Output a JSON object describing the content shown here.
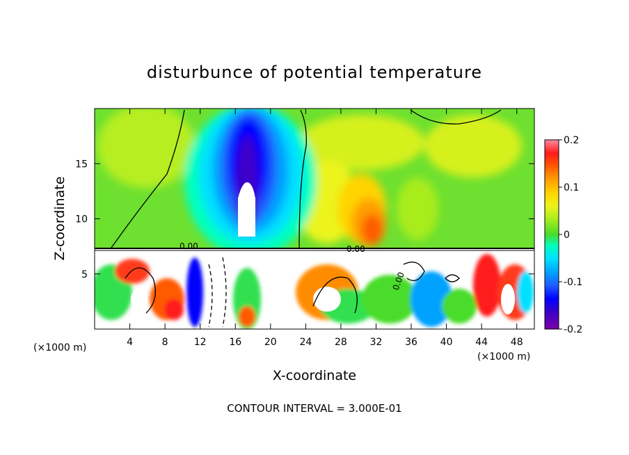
{
  "chart_data": {
    "type": "heatmap",
    "title": "disturbunce of potential temperature",
    "xlabel": "X-coordinate",
    "ylabel": "Z-coordinate",
    "x_unit_label": "(×1000 m)",
    "x_unit_label_right": "(×1000 m)",
    "xlim": [
      0,
      50
    ],
    "ylim": [
      0,
      20
    ],
    "x_ticks": [
      4,
      8,
      12,
      16,
      20,
      24,
      28,
      32,
      36,
      40,
      44,
      48
    ],
    "y_ticks": [
      5,
      10,
      15
    ],
    "colorbar": {
      "range": [
        -0.2,
        0.2
      ],
      "tick_labels": [
        "0.2",
        "0.1",
        "0",
        "-0.1",
        "-0.2"
      ],
      "tick_values": [
        0.2,
        0.1,
        0,
        -0.1,
        -0.2
      ],
      "colors": [
        "#7b00a8",
        "#3c00c8",
        "#0000ff",
        "#1e5cff",
        "#00a2ff",
        "#00e0ff",
        "#00ffc0",
        "#30e050",
        "#48dc2a",
        "#a8ec1c",
        "#ecf41a",
        "#ffd400",
        "#ff9e00",
        "#ff5a00",
        "#ff1a1a",
        "#ff8ca0"
      ]
    },
    "contour_label": "0.00",
    "contour_interval_text": "CONTOUR INTERVAL = 3.000E-01",
    "field_description": {
      "upper_layer_z_above": 7.3,
      "cold_plume_center_x": 17.5,
      "warm_region_center_x": 30
    }
  }
}
